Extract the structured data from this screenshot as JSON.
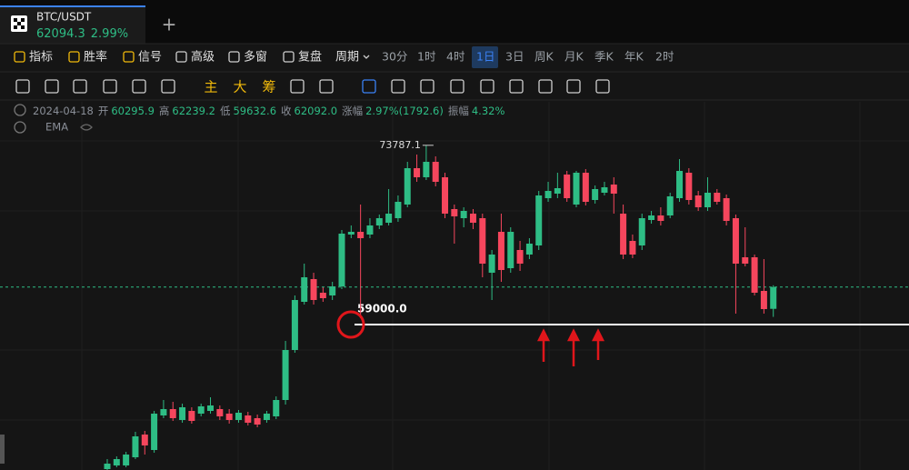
{
  "tab": {
    "symbol": "BTC/USDT",
    "price": "62094.3",
    "change": "2.99%"
  },
  "toolbar": {
    "items": [
      "指标",
      "胜率",
      "信号",
      "高级",
      "多窗",
      "复盘"
    ],
    "period_label": "周期",
    "periods": [
      "30分",
      "1时",
      "4时",
      "1日",
      "3日",
      "周K",
      "月K",
      "季K",
      "年K",
      "2时"
    ],
    "active_period": "1日"
  },
  "drawing_tools": [
    "主",
    "大",
    "筹"
  ],
  "info": {
    "date": "2024-04-18",
    "fields": [
      {
        "label": "开",
        "value": "60295.9"
      },
      {
        "label": "高",
        "value": "62239.2"
      },
      {
        "label": "低",
        "value": "59632.6"
      },
      {
        "label": "收",
        "value": "62092.0"
      },
      {
        "label": "涨幅",
        "value": "2.97%(1792.6)"
      },
      {
        "label": "振幅",
        "value": "4.32%"
      }
    ]
  },
  "indicator": "EMA",
  "chart_data": {
    "type": "candlestick",
    "candles": {
      "open": [
        47075,
        47375,
        47375,
        48050,
        49925,
        48650,
        51500,
        52025,
        51125,
        51875,
        51650,
        51875,
        52025,
        51650,
        51125,
        51500,
        51275,
        51125,
        51425,
        52775,
        56900,
        60875,
        62750,
        61625,
        61400,
        62150,
        66425,
        66650,
        66425,
        67175,
        67400,
        67775,
        68900,
        71900,
        71150,
        72425,
        71150,
        68525,
        67775,
        68150,
        67775,
        63275,
        66650,
        63650,
        65150,
        64775,
        65525,
        69425,
        69800,
        71375,
        68900,
        71525,
        69275,
        69875,
        70550,
        68150,
        65900,
        65525,
        67625,
        68000,
        68000,
        69425,
        71525,
        69650,
        68675,
        69875,
        69425,
        67775,
        64550,
        64550,
        61775,
        60295.9
      ],
      "high": [
        47900,
        48125,
        48500,
        50150,
        50225,
        51875,
        52775,
        52625,
        52475,
        52175,
        52475,
        53000,
        52325,
        52025,
        51950,
        51800,
        51575,
        51875,
        53075,
        57650,
        61400,
        64025,
        63275,
        62075,
        62525,
        66800,
        67175,
        68900,
        67775,
        68075,
        70175,
        69650,
        72425,
        73025,
        73787.1,
        72875,
        71525,
        68900,
        68675,
        68525,
        68150,
        65150,
        68150,
        67025,
        65900,
        66125,
        70025,
        70775,
        71525,
        71675,
        71675,
        71825,
        70475,
        70775,
        71150,
        68900,
        66425,
        68150,
        68375,
        68675,
        69875,
        72650,
        71900,
        70025,
        71150,
        70175,
        69725,
        68075,
        67025,
        64775,
        64400,
        62239.2
      ],
      "low": [
        47000,
        47225,
        47225,
        47900,
        48275,
        48425,
        51275,
        51050,
        50900,
        50825,
        51425,
        51650,
        51125,
        50825,
        50900,
        50675,
        50525,
        50900,
        51200,
        52400,
        56675,
        60650,
        60650,
        60875,
        61025,
        61925,
        66125,
        59525,
        66125,
        66875,
        67175,
        67475,
        68675,
        70775,
        70925,
        70400,
        67775,
        65675,
        67025,
        66875,
        62900,
        61025,
        62525,
        63275,
        63425,
        64400,
        65150,
        69125,
        69425,
        69125,
        68675,
        68825,
        68975,
        69650,
        68150,
        64400,
        64475,
        65150,
        67325,
        67175,
        67775,
        69125,
        68900,
        68375,
        68375,
        68900,
        67175,
        59900,
        63800,
        61400,
        59900,
        59632.6
      ],
      "close": [
        47525,
        47900,
        48275,
        49775,
        49025,
        51650,
        52025,
        51275,
        52175,
        51050,
        52250,
        52325,
        51425,
        51125,
        51725,
        50900,
        50750,
        51650,
        52775,
        56900,
        61025,
        62900,
        61025,
        61175,
        62150,
        66500,
        66650,
        66125,
        67175,
        67775,
        68150,
        69125,
        71900,
        71150,
        72425,
        70775,
        68150,
        67925,
        68375,
        67400,
        64025,
        64775,
        63500,
        66650,
        64025,
        65675,
        69650,
        70025,
        70250,
        69425,
        71525,
        69125,
        70175,
        70325,
        69800,
        64775,
        64775,
        67775,
        68000,
        67550,
        69575,
        71675,
        69275,
        68675,
        69875,
        69125,
        67550,
        64025,
        64025,
        61625,
        60275,
        62092.0
      ]
    },
    "ylim": [
      47000,
      77375
    ],
    "up_color": "#2ebd85",
    "down_color": "#f6465d",
    "levels": [
      {
        "value": 59000,
        "label": "59000.0"
      }
    ],
    "price_line": 62094.3
  }
}
